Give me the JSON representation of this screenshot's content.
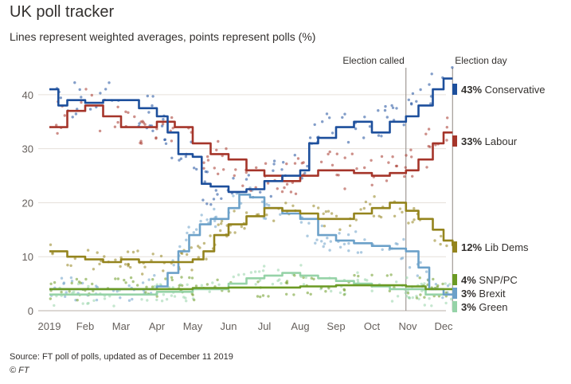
{
  "title": "UK poll tracker",
  "subtitle": "Lines represent weighted averages, points represent polls (%)",
  "source": "Source: FT poll of polls, updated as of December 11 2019",
  "credit": "© FT",
  "chart_data": {
    "type": "line",
    "ylim": [
      0,
      45
    ],
    "yticks": [
      0,
      10,
      20,
      30,
      40
    ],
    "xlabels": [
      "2019",
      "Feb",
      "Mar",
      "Apr",
      "May",
      "Jun",
      "Jul",
      "Aug",
      "Sep",
      "Oct",
      "Nov",
      "Dec"
    ],
    "grid": true,
    "annotations": [
      {
        "label": "Election called",
        "x": 9.95
      },
      {
        "label": "Election day",
        "x": 11.25
      }
    ],
    "series": [
      {
        "name": "Conservative",
        "end_label": "43% Conservative",
        "color": "#1d4f9c",
        "x": [
          0,
          0.25,
          0.5,
          1,
          1.5,
          2,
          2.5,
          3,
          3.3,
          3.6,
          4,
          4.25,
          4.5,
          5,
          5.5,
          6,
          6.5,
          7,
          7.25,
          7.5,
          8,
          8.5,
          9,
          9.5,
          9.95,
          10.3,
          10.7,
          11,
          11.25
        ],
        "values": [
          41,
          38,
          39,
          38.5,
          39,
          39,
          37.5,
          36,
          33,
          29,
          28.5,
          23.5,
          23,
          22,
          22.5,
          24,
          25,
          26,
          31,
          32,
          34,
          35,
          33,
          35,
          36,
          38,
          41,
          43,
          43
        ]
      },
      {
        "name": "Labour",
        "end_label": "33% Labour",
        "color": "#a5352a",
        "x": [
          0,
          0.5,
          1,
          1.5,
          2,
          2.5,
          3,
          3.5,
          4,
          4.5,
          5,
          5.5,
          6,
          6.5,
          7,
          7.5,
          8,
          8.5,
          9,
          9.5,
          9.95,
          10.3,
          10.7,
          11,
          11.25
        ],
        "values": [
          34,
          37,
          38,
          36,
          34,
          34,
          35,
          34,
          31,
          29,
          28,
          26,
          25,
          24,
          25,
          26,
          26,
          25.5,
          25,
          25.5,
          26,
          28,
          31,
          33,
          33
        ]
      },
      {
        "name": "Lib Dems",
        "end_label": "12% Lib Dems",
        "color": "#94841d",
        "x": [
          0,
          0.5,
          1,
          1.5,
          2,
          2.5,
          3,
          3.5,
          4,
          4.3,
          4.6,
          5,
          5.5,
          6,
          6.5,
          7,
          7.5,
          8,
          8.5,
          9,
          9.5,
          9.95,
          10.3,
          10.7,
          11,
          11.25
        ],
        "values": [
          11,
          10,
          9.5,
          9,
          9.5,
          9,
          9,
          9,
          9.5,
          11,
          14,
          16,
          17.5,
          19,
          18.5,
          18,
          17,
          17,
          18,
          19,
          20,
          18.5,
          17,
          15,
          13,
          12
        ]
      },
      {
        "name": "SNP/PC",
        "end_label": "4% SNP/PC",
        "color": "#6b9a24",
        "x": [
          0,
          1,
          2,
          3,
          4,
          5,
          6,
          7,
          8,
          9,
          9.95,
          10.5,
          11,
          11.25
        ],
        "values": [
          4,
          4,
          4,
          4,
          4.2,
          4.3,
          4.3,
          4.5,
          4.7,
          4.7,
          4.5,
          4,
          4,
          4
        ]
      },
      {
        "name": "Brexit",
        "end_label": "3% Brexit",
        "color": "#6ca1c9",
        "x": [
          0,
          2,
          3,
          3.3,
          3.6,
          3.9,
          4.2,
          4.5,
          5,
          5.3,
          5.6,
          6,
          6.5,
          7,
          7.5,
          8,
          8.5,
          9,
          9.5,
          9.95,
          10.3,
          10.6,
          11,
          11.25
        ],
        "values": [
          4,
          4,
          4.5,
          7,
          11,
          14,
          16,
          17,
          19,
          21.5,
          21,
          19,
          18,
          17,
          14,
          13,
          12.5,
          12,
          11.5,
          11,
          8,
          4,
          3,
          3
        ]
      },
      {
        "name": "Green",
        "end_label": "3% Green",
        "color": "#96d3a8",
        "x": [
          0,
          2,
          3,
          4,
          5,
          5.5,
          6,
          6.5,
          7,
          7.5,
          8,
          8.5,
          9,
          9.5,
          9.95,
          10.5,
          11,
          11.25
        ],
        "values": [
          3,
          3,
          3.5,
          4,
          5,
          6,
          6.5,
          7,
          6.5,
          6,
          5.5,
          5,
          4.5,
          4,
          4,
          3,
          3,
          3
        ]
      }
    ]
  }
}
